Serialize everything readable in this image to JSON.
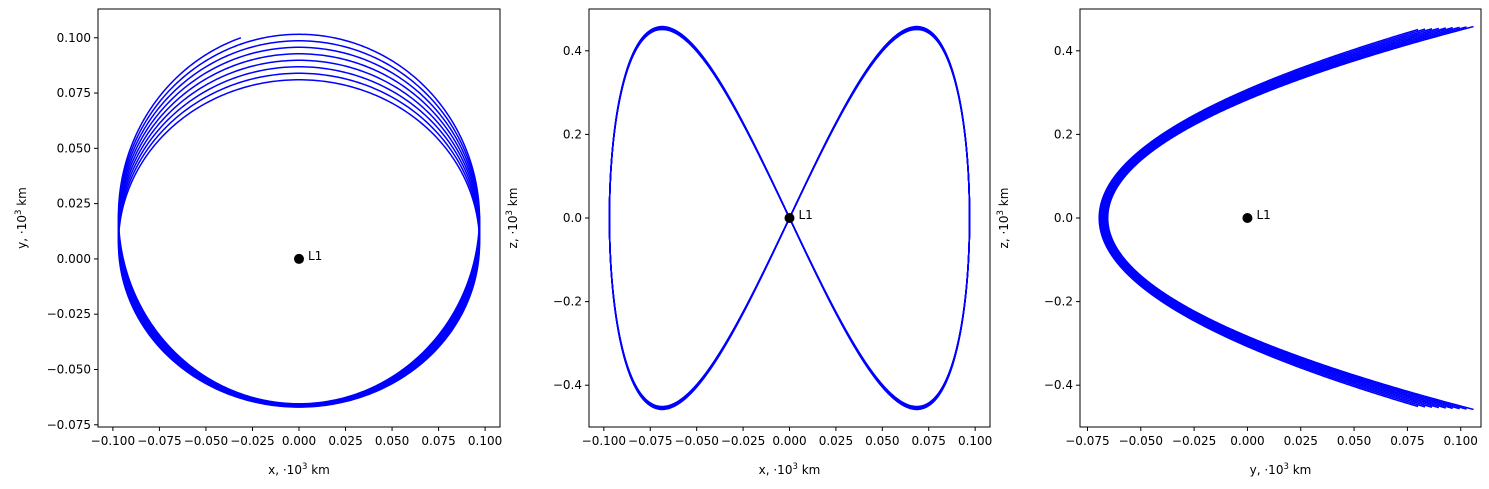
{
  "chart_data": [
    {
      "type": "line",
      "xlabel": "x, ·10³ km",
      "ylabel": "y, ·10³ km",
      "xlim": [
        -0.108,
        0.108
      ],
      "ylim": [
        -0.076,
        0.113
      ],
      "xticks": [
        -0.1,
        -0.075,
        -0.05,
        -0.025,
        0.0,
        0.025,
        0.05,
        0.075,
        0.1
      ],
      "xtick_labels": [
        "−0.100",
        "−0.075",
        "−0.050",
        "−0.025",
        "0.000",
        "0.025",
        "0.050",
        "0.075",
        "0.100"
      ],
      "yticks": [
        -0.075,
        -0.05,
        -0.025,
        0.0,
        0.025,
        0.05,
        0.075,
        0.1
      ],
      "ytick_labels": [
        "−0.075",
        "−0.050",
        "−0.025",
        "0.000",
        "0.025",
        "0.050",
        "0.075",
        "0.100"
      ],
      "grid": false,
      "series": [
        {
          "color": "#0000ff",
          "loops": 9,
          "x_amplitude": 0.097,
          "y_amplitude_range": [
            0.074,
            0.085
          ],
          "y_offset_range": [
            0.007,
            0.0195
          ],
          "start_point": [
            -0.055,
            0.097
          ]
        }
      ],
      "point": {
        "label": "L1",
        "x": 0.0,
        "y": 0.0,
        "color": "#000000"
      }
    },
    {
      "type": "line",
      "xlabel": "x, ·10³ km",
      "ylabel": "z, ·10³ km",
      "xlim": [
        -0.108,
        0.108
      ],
      "ylim": [
        -0.5,
        0.5
      ],
      "xticks": [
        -0.1,
        -0.075,
        -0.05,
        -0.025,
        0.0,
        0.025,
        0.05,
        0.075,
        0.1
      ],
      "xtick_labels": [
        "−0.100",
        "−0.075",
        "−0.050",
        "−0.025",
        "0.000",
        "0.025",
        "0.050",
        "0.075",
        "0.100"
      ],
      "yticks": [
        -0.4,
        -0.2,
        0.0,
        0.2,
        0.4
      ],
      "ytick_labels": [
        "−0.4",
        "−0.2",
        "0.0",
        "0.2",
        "0.4"
      ],
      "grid": false,
      "series": [
        {
          "color": "#0000ff",
          "loops": 9,
          "x_amplitude": 0.097,
          "z_amplitude_range": [
            0.451,
            0.458
          ]
        }
      ],
      "point": {
        "label": "L1",
        "x": 0.0,
        "y": 0.0,
        "color": "#000000"
      }
    },
    {
      "type": "line",
      "xlabel": "y, ·10³ km",
      "ylabel": "z, ·10³ km",
      "xlim": [
        -0.0785,
        0.1095
      ],
      "ylim": [
        -0.5,
        0.5
      ],
      "xticks": [
        -0.075,
        -0.05,
        -0.025,
        0.0,
        0.025,
        0.05,
        0.075,
        0.1
      ],
      "xtick_labels": [
        "−0.075",
        "−0.050",
        "−0.025",
        "0.000",
        "0.025",
        "0.050",
        "0.075",
        "0.100"
      ],
      "yticks": [
        -0.4,
        -0.2,
        0.0,
        0.2,
        0.4
      ],
      "ytick_labels": [
        "−0.4",
        "−0.2",
        "0.0",
        "0.2",
        "0.4"
      ],
      "grid": false,
      "series": [
        {
          "color": "#0000ff",
          "loops": 9,
          "y_vertex_range": [
            -0.0695,
            -0.0655
          ],
          "y_end_range": [
            0.08,
            0.106
          ],
          "z_amplitude_range": [
            0.451,
            0.458
          ]
        }
      ],
      "point": {
        "label": "L1",
        "x": 0.0,
        "y": 0.0,
        "color": "#000000"
      }
    }
  ]
}
